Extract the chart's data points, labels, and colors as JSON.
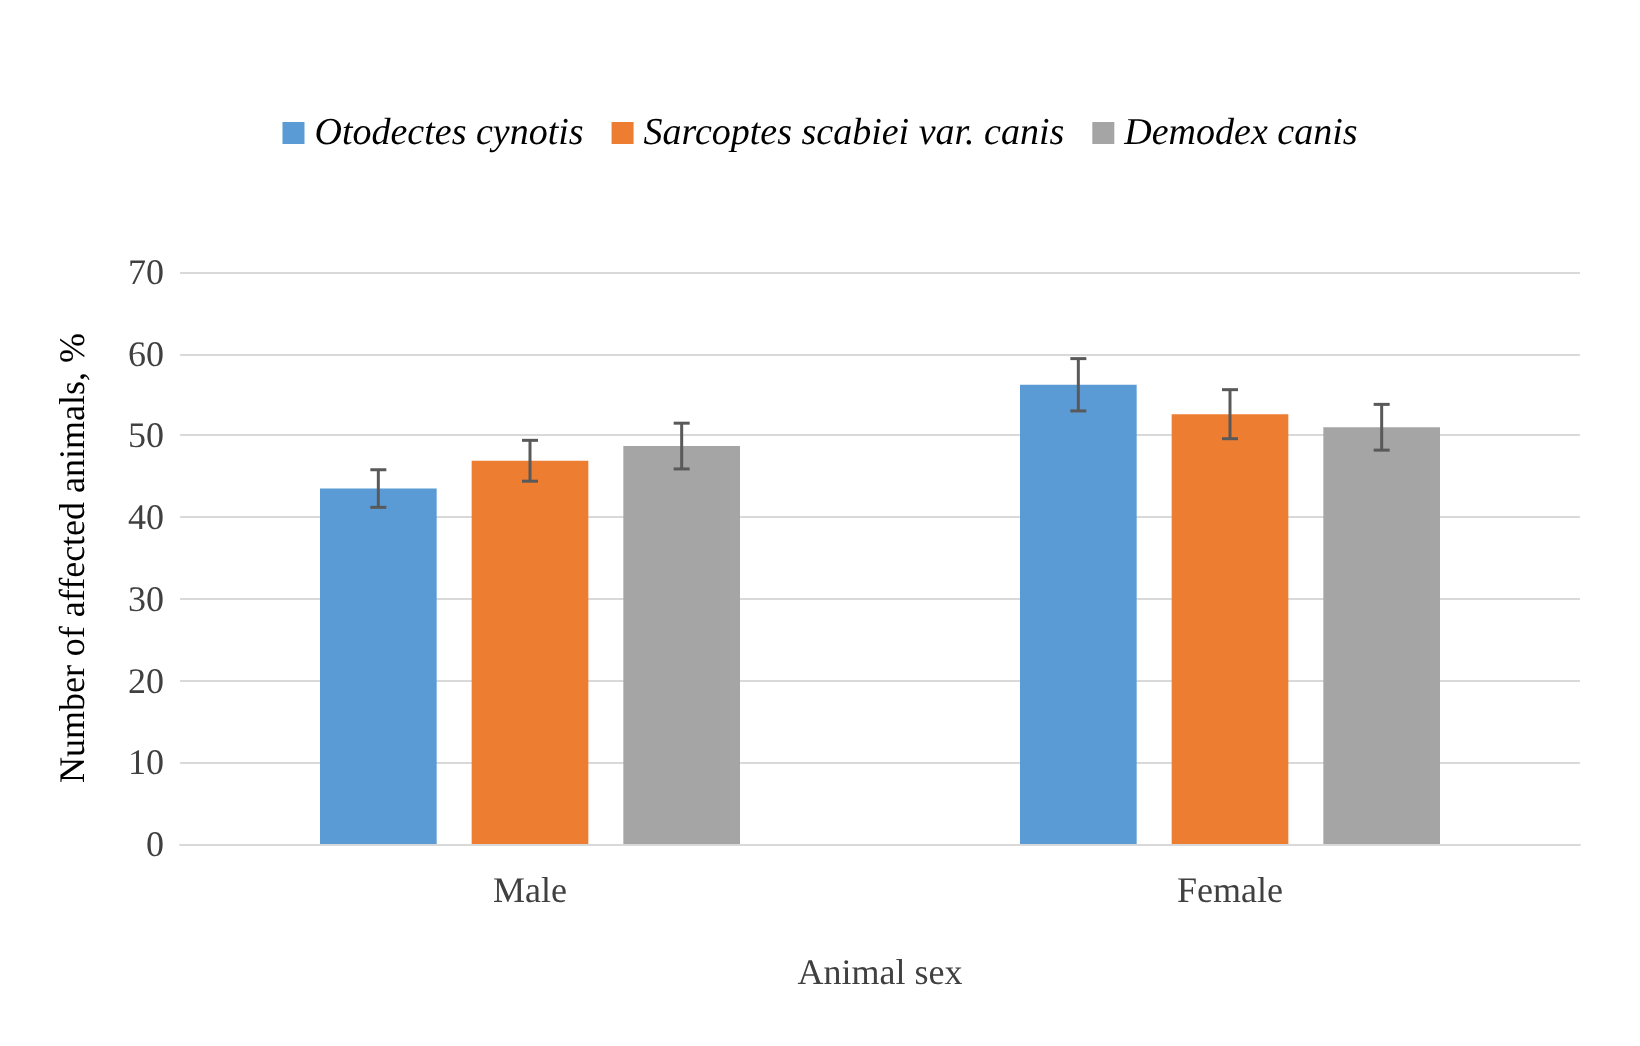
{
  "chart_data": {
    "type": "bar",
    "xlabel": "Animal sex",
    "ylabel": "Number of affected animals, %",
    "categories": [
      "Male",
      "Female"
    ],
    "series": [
      {
        "name": "Otodectes cynotis",
        "color": "#5b9bd5",
        "values": [
          43.5,
          56.2
        ],
        "errors": [
          2.3,
          3.2
        ]
      },
      {
        "name": "Sarcoptes scabiei var. canis",
        "color": "#ed7d31",
        "values": [
          46.9,
          52.6
        ],
        "errors": [
          2.5,
          3
        ]
      },
      {
        "name": "Demodex canis",
        "color": "#a5a5a5",
        "values": [
          48.7,
          51
        ],
        "errors": [
          2.8,
          2.8
        ]
      }
    ],
    "ylim": [
      0,
      70
    ],
    "yticks": [
      0,
      10,
      20,
      30,
      40,
      50,
      60,
      70
    ],
    "grid": "y",
    "legend": "top"
  }
}
